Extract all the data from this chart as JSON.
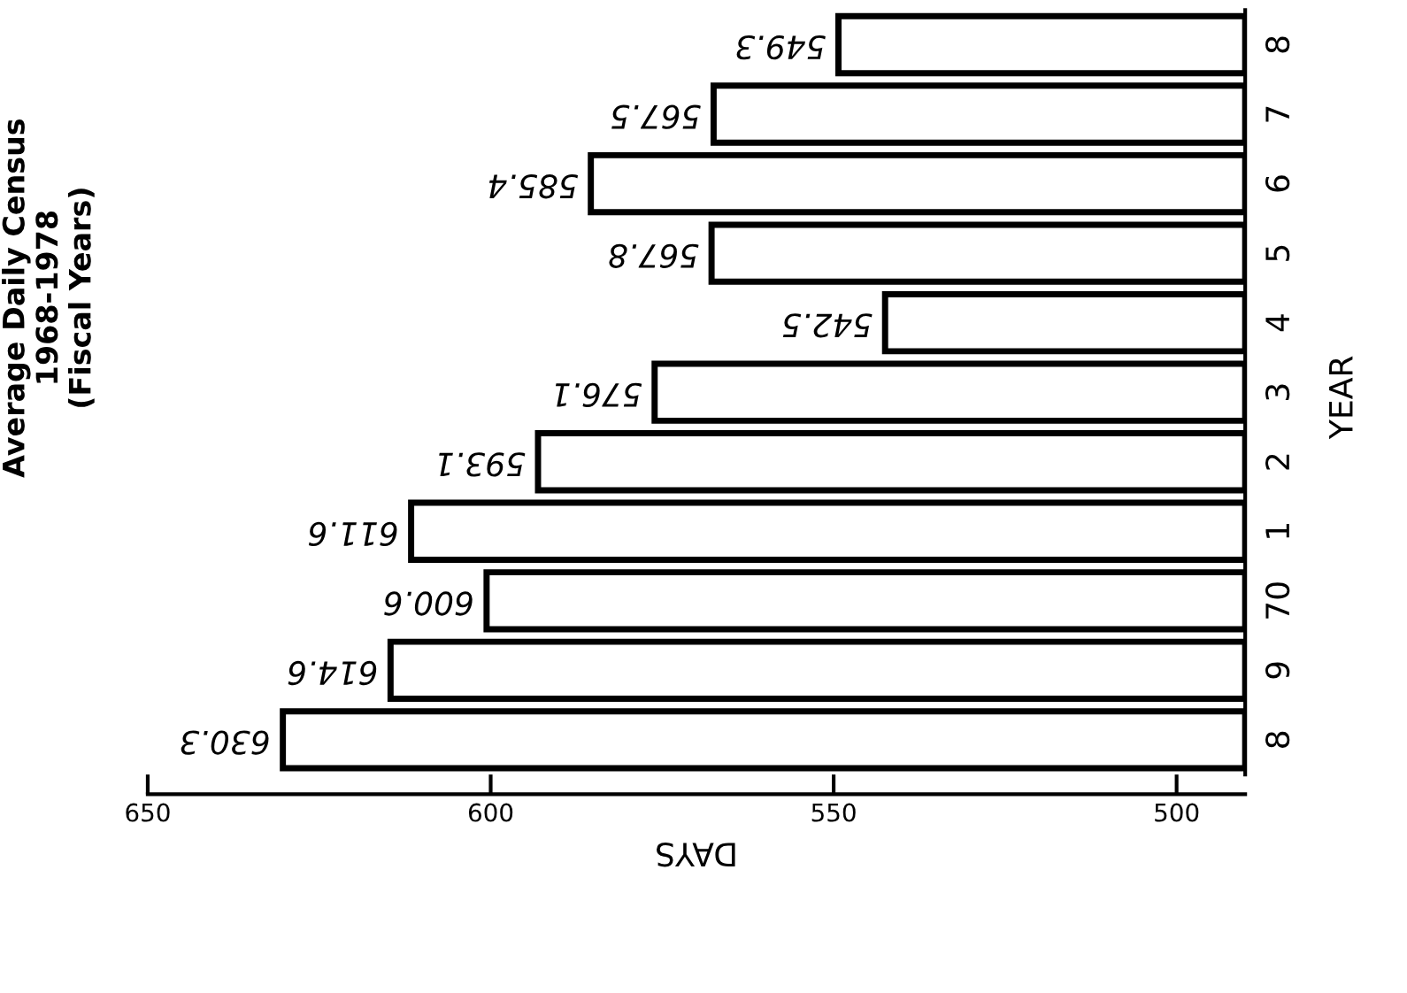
{
  "chart_data": {
    "type": "bar",
    "orientation": "horizontal",
    "title": "Average Daily Census\n1968-1978\n(Fiscal Years)",
    "xlabel": "DAYS",
    "ylabel": "YEAR",
    "categories": [
      "8",
      "7",
      "6",
      "5",
      "4",
      "3",
      "2",
      "1",
      "70",
      "9",
      "8"
    ],
    "values": [
      549.3,
      567.5,
      585.4,
      567.8,
      542.5,
      576.1,
      593.1,
      611.6,
      600.6,
      614.6,
      630.3
    ],
    "color": "#ffffff",
    "data_labels": true,
    "grid": false,
    "legend": false,
    "xlim": [
      650,
      490
    ],
    "xticks": [
      650,
      600,
      550,
      500
    ]
  }
}
